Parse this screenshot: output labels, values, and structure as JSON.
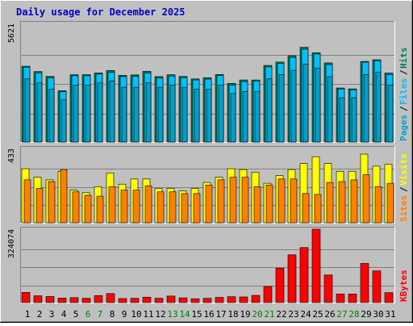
{
  "chart_data": {
    "type": "bar",
    "title": "Daily usage for December 2025",
    "categories": [
      "1",
      "2",
      "3",
      "4",
      "5",
      "6",
      "7",
      "8",
      "9",
      "10",
      "11",
      "12",
      "13",
      "14",
      "15",
      "16",
      "17",
      "18",
      "19",
      "20",
      "21",
      "22",
      "23",
      "24",
      "25",
      "26",
      "27",
      "28",
      "29",
      "30",
      "31"
    ],
    "weekend_days": [
      "6",
      "7",
      "13",
      "14",
      "20",
      "21",
      "27",
      "28"
    ],
    "colors": {
      "title": "#0000cc",
      "hits": "#00805c",
      "files": "#00c0ff",
      "pages": "#00a0c8",
      "visits": "#ffff00",
      "sites": "#ff8000",
      "kbytes": "#ff0000",
      "weekday_label": "#000000",
      "weekend_label": "#008000"
    },
    "panels": [
      {
        "name": "hits-files-pages",
        "ymax_label": "5621",
        "ymax": 5621,
        "legend": [
          "Pages",
          "Files",
          "Hits"
        ],
        "series": [
          {
            "name": "Hits",
            "values": [
              3590,
              3340,
              3110,
              2430,
              3190,
              3190,
              3270,
              3390,
              3160,
              3180,
              3350,
              3100,
              3190,
              3110,
              2990,
              3050,
              3200,
              2780,
              2940,
              2940,
              3630,
              3790,
              4090,
              4490,
              4230,
              3750,
              2560,
              2520,
              3820,
              3900,
              3270
            ]
          },
          {
            "name": "Files",
            "values": [
              3550,
              3280,
              3040,
              2380,
              3140,
              3140,
              3220,
              3300,
              3100,
              3110,
              3270,
              3030,
              3130,
              3050,
              2940,
              2980,
              3150,
              2700,
              2860,
              2890,
              3560,
              3730,
              4010,
              4400,
              4170,
              3670,
              2510,
              2470,
              3780,
              3850,
              3200
            ]
          },
          {
            "name": "Pages",
            "values": [
              3000,
              2800,
              2500,
              2000,
              2700,
              2700,
              2800,
              2900,
              2600,
              2600,
              2800,
              2600,
              2700,
              2600,
              2500,
              2500,
              2700,
              2300,
              2400,
              2400,
              3000,
              3200,
              3400,
              3700,
              3500,
              3100,
              2100,
              2100,
              3200,
              3300,
              2700
            ]
          }
        ]
      },
      {
        "name": "visits-sites",
        "ymax_label": "433",
        "ymax": 433,
        "legend": [
          "Sites",
          "Visits"
        ],
        "series": [
          {
            "name": "Visits",
            "values": [
              315,
              265,
              250,
              300,
              190,
              175,
              210,
              290,
              225,
              255,
              255,
              200,
              200,
              185,
              200,
              235,
              265,
              315,
              310,
              295,
              230,
              275,
              310,
              345,
              385,
              345,
              300,
              300,
              400,
              330,
              340
            ]
          },
          {
            "name": "Sites",
            "values": [
              250,
              200,
              240,
              310,
              180,
              160,
              155,
              210,
              190,
              190,
              215,
              180,
              180,
              170,
              170,
              220,
              250,
              265,
              265,
              210,
              220,
              255,
              255,
              170,
              165,
              235,
              240,
              250,
              280,
              210,
              230
            ]
          }
        ]
      },
      {
        "name": "kbytes",
        "ymax_label": "324074",
        "ymax": 324074,
        "legend": [
          "KBytes"
        ],
        "series": [
          {
            "name": "KBytes",
            "values": [
              45000,
              30000,
              27000,
              20000,
              22000,
              19000,
              31000,
              40000,
              18000,
              19000,
              24000,
              19000,
              29000,
              21000,
              17000,
              19000,
              23000,
              26000,
              25000,
              32000,
              71000,
              152000,
              211000,
              243000,
              324074,
              122000,
              38000,
              38000,
              173000,
              140000,
              44000
            ]
          }
        ]
      }
    ]
  }
}
